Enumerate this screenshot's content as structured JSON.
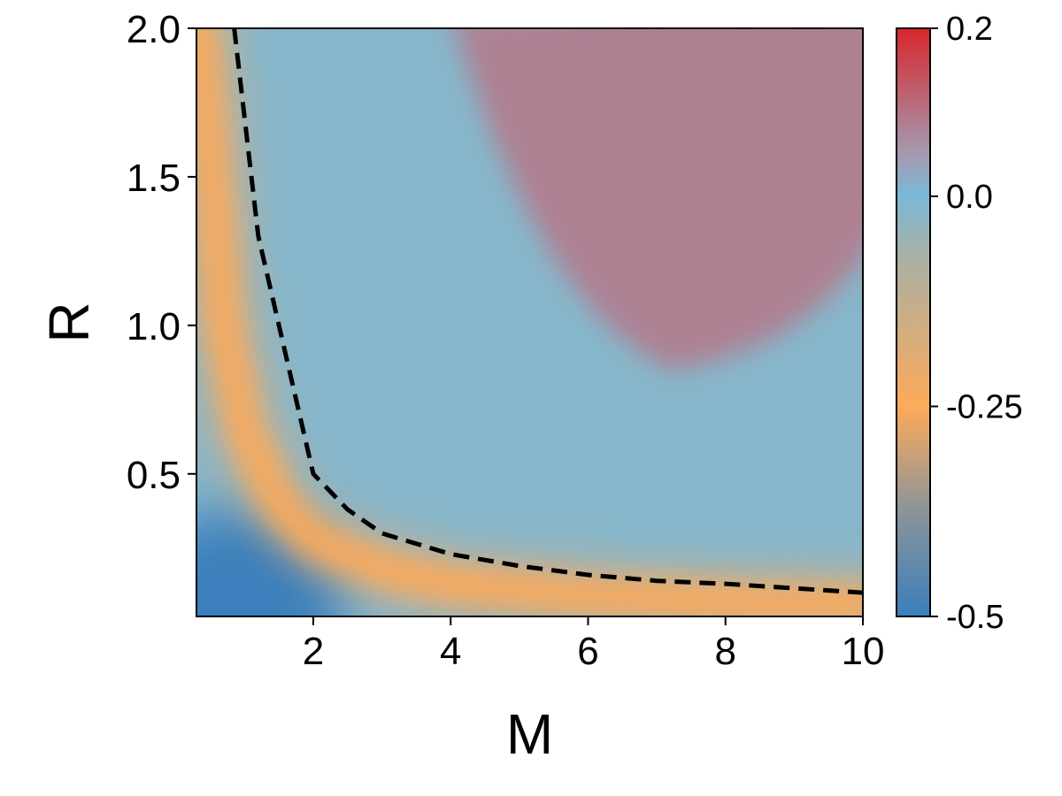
{
  "chart_data": {
    "type": "heatmap",
    "xlabel": "M",
    "ylabel": "R",
    "xlim": [
      0.3,
      10
    ],
    "ylim": [
      0.02,
      2.0
    ],
    "x_ticks": [
      {
        "value": 2,
        "label": "2"
      },
      {
        "value": 4,
        "label": "4"
      },
      {
        "value": 6,
        "label": "6"
      },
      {
        "value": 8,
        "label": "8"
      },
      {
        "value": 10,
        "label": "10"
      }
    ],
    "y_ticks": [
      {
        "value": 0.5,
        "label": "0.5"
      },
      {
        "value": 1.0,
        "label": "1.0"
      },
      {
        "value": 1.5,
        "label": "1.5"
      },
      {
        "value": 2.0,
        "label": "2.0"
      }
    ],
    "colorbar": {
      "range": [
        -0.5,
        0.2
      ],
      "ticks": [
        {
          "value": 0.2,
          "label": "0.2"
        },
        {
          "value": 0.0,
          "label": "0.0"
        },
        {
          "value": -0.25,
          "label": "-0.25"
        },
        {
          "value": -0.5,
          "label": "-0.5"
        }
      ],
      "stops": [
        {
          "value": -0.5,
          "color": "#3a7fbc"
        },
        {
          "value": -0.375,
          "color": "#8b9499"
        },
        {
          "value": -0.25,
          "color": "#fdaa5a"
        },
        {
          "value": -0.07,
          "color": "#a8b0a6"
        },
        {
          "value": 0.0,
          "color": "#7ab8d8"
        },
        {
          "value": 0.05,
          "color": "#a49ab0"
        },
        {
          "value": 0.2,
          "color": "#d8262b"
        }
      ]
    },
    "background_value": -0.02,
    "regions": [
      {
        "name": "positive region (upper right)",
        "value": 0.09
      },
      {
        "name": "negative band along curve",
        "value": -0.25
      },
      {
        "name": "low-M low-R corner",
        "value": -0.5
      }
    ],
    "dashed_curve": {
      "style": "dashed",
      "color": "#000000",
      "x": [
        0.85,
        1.0,
        1.2,
        1.5,
        2.0,
        2.5,
        3.0,
        4.0,
        5.0,
        6.0,
        7.0,
        8.0,
        9.0,
        10.0
      ],
      "y": [
        2.0,
        1.7,
        1.3,
        1.0,
        0.5,
        0.38,
        0.3,
        0.23,
        0.19,
        0.16,
        0.14,
        0.13,
        0.115,
        0.1
      ]
    },
    "ridge_curve": {
      "x": [
        0.35,
        0.5,
        0.7,
        1.0,
        1.5,
        2.0,
        3.0,
        4.0,
        6.0,
        8.0,
        10.0
      ],
      "y": [
        2.0,
        1.6,
        1.0,
        0.65,
        0.4,
        0.28,
        0.18,
        0.13,
        0.09,
        0.07,
        0.06
      ]
    }
  }
}
